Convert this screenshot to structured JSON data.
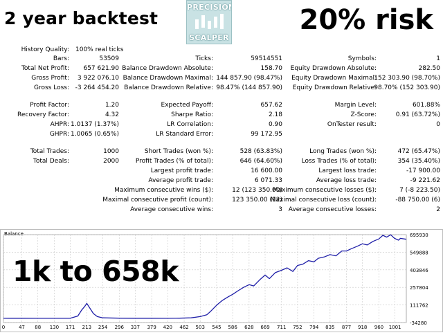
{
  "banner": {
    "left": "2 year backtest",
    "right": "20% risk",
    "logo_top": "PRECISION",
    "logo_bottom": "SCALPER",
    "big": "1k to 658k"
  },
  "report": {
    "history_quality": {
      "label": "History Quality:",
      "value": "100% real ticks"
    },
    "rows": [
      {
        "c1l": "Bars:",
        "c1v": "53509",
        "c2l": "Ticks:",
        "c2v": "59514551",
        "c3l": "Symbols:",
        "c3v": "1"
      },
      {
        "c1l": "Total Net Profit:",
        "c1v": "657 621.90",
        "c2l": "Balance Drawdown Absolute:",
        "c2v": "158.70",
        "c3l": "Equity Drawdown Absolute:",
        "c3v": "282.50"
      },
      {
        "c1l": "Gross Profit:",
        "c1v": "3 922 076.10",
        "c2l": "Balance Drawdown Maximal:",
        "c2v": "144 857.90 (98.47%)",
        "c3l": "Equity Drawdown Maximal:",
        "c3v": "152 303.90 (98.70%)"
      },
      {
        "c1l": "Gross Loss:",
        "c1v": "-3 264 454.20",
        "c2l": "Balance Drawdown Relative:",
        "c2v": "98.47% (144 857.90)",
        "c3l": "Equity Drawdown Relative:",
        "c3v": "98.70% (152 303.90)"
      },
      {
        "c1l": "Profit Factor:",
        "c1v": "1.20",
        "c2l": "Expected Payoff:",
        "c2v": "657.62",
        "c3l": "Margin Level:",
        "c3v": "601.88%"
      },
      {
        "c1l": "Recovery Factor:",
        "c1v": "4.32",
        "c2l": "Sharpe Ratio:",
        "c2v": "2.18",
        "c3l": "Z-Score:",
        "c3v": "0.91 (63.72%)"
      },
      {
        "c1l": "AHPR:",
        "c1v": "1.0137 (1.37%)",
        "c2l": "LR Correlation:",
        "c2v": "0.90",
        "c3l": "OnTester result:",
        "c3v": "0"
      },
      {
        "c1l": "GHPR:",
        "c1v": "1.0065 (0.65%)",
        "c2l": "LR Standard Error:",
        "c2v": "99 172.95",
        "c3l": "",
        "c3v": ""
      },
      {
        "c1l": "Total Trades:",
        "c1v": "1000",
        "c2l": "Short Trades (won %):",
        "c2v": "528 (63.83%)",
        "c3l": "Long Trades (won %):",
        "c3v": "472 (65.47%)"
      },
      {
        "c1l": "Total Deals:",
        "c1v": "2000",
        "c2l": "Profit Trades (% of total):",
        "c2v": "646 (64.60%)",
        "c3l": "Loss Trades (% of total):",
        "c3v": "354 (35.40%)"
      },
      {
        "c1l": "",
        "c1v": "",
        "c2l": "Largest profit trade:",
        "c2v": "16 600.00",
        "c3l": "Largest loss trade:",
        "c3v": "-17 900.00"
      },
      {
        "c1l": "",
        "c1v": "",
        "c2l": "Average profit trade:",
        "c2v": "6 071.33",
        "c3l": "Average loss trade:",
        "c3v": "-9 221.62"
      },
      {
        "c1l": "",
        "c1v": "",
        "c2l": "Maximum consecutive wins ($):",
        "c2v": "12 (123 350.00)",
        "c3l": "Maximum consecutive losses ($):",
        "c3v": "7 (-8 223.50)"
      },
      {
        "c1l": "",
        "c1v": "",
        "c2l": "Maximal consecutive profit (count):",
        "c2v": "123 350.00 (12)",
        "c3l": "Maximal consecutive loss (count):",
        "c3v": "-88 750.00 (6)"
      },
      {
        "c1l": "",
        "c1v": "",
        "c2l": "Average consecutive wins:",
        "c2v": "3",
        "c3l": "Average consecutive losses:",
        "c3v": "2"
      }
    ]
  },
  "chart_data": {
    "type": "line",
    "title": "Balance",
    "xlabel": "",
    "ylabel": "",
    "x_ticks": [
      0,
      47,
      88,
      130,
      171,
      213,
      254,
      296,
      337,
      379,
      420,
      462,
      503,
      545,
      586,
      628,
      669,
      711,
      752,
      794,
      835,
      877,
      918,
      960,
      1001
    ],
    "y_ticks": [
      "695930",
      "549888",
      "403846",
      "257804",
      "111762",
      "-34280"
    ],
    "ylim": [
      -34280,
      695930
    ],
    "xlim": [
      0,
      1030
    ],
    "grid": true,
    "line_color": "#1f1fa8",
    "series": [
      {
        "name": "",
        "x": [
          0,
          20,
          47,
          88,
          130,
          171,
          190,
          200,
          208,
          213,
          220,
          230,
          240,
          254,
          296,
          337,
          379,
          420,
          450,
          480,
          503,
          520,
          530,
          545,
          560,
          575,
          586,
          600,
          615,
          628,
          640,
          655,
          669,
          680,
          695,
          711,
          725,
          740,
          752,
          765,
          780,
          794,
          805,
          820,
          835,
          850,
          865,
          877,
          890,
          905,
          918,
          930,
          945,
          960,
          970,
          980,
          990,
          1000,
          1010,
          1015,
          1030
        ],
        "values": [
          1000,
          1500,
          1200,
          900,
          1000,
          1500,
          20000,
          70000,
          100000,
          125000,
          90000,
          40000,
          15000,
          5000,
          2000,
          1500,
          1200,
          1000,
          2000,
          5000,
          15000,
          30000,
          60000,
          110000,
          150000,
          180000,
          200000,
          230000,
          260000,
          280000,
          270000,
          320000,
          360000,
          330000,
          380000,
          400000,
          420000,
          390000,
          440000,
          450000,
          480000,
          470000,
          500000,
          510000,
          530000,
          520000,
          560000,
          560000,
          580000,
          600000,
          620000,
          610000,
          640000,
          660000,
          690000,
          675000,
          695000,
          665000,
          650000,
          665000,
          657622
        ]
      }
    ]
  }
}
